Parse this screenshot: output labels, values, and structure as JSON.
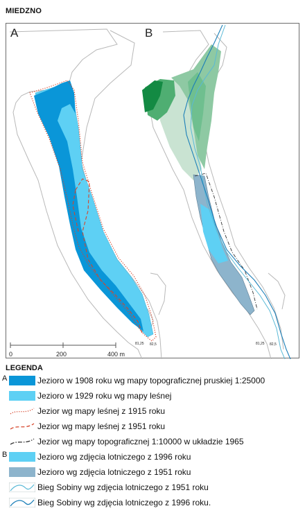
{
  "title": "MIEDZNO",
  "panels": {
    "a": "A",
    "b": "B"
  },
  "scale": {
    "tick0": "0",
    "tick1": "200",
    "tick2": "400 m"
  },
  "elevations": {
    "a_left": "81,25",
    "a_right": "82,5",
    "b_left": "81,25",
    "b_right": "82,5"
  },
  "legend": {
    "title": "LEGENDA",
    "group_a": "A",
    "group_b": "B",
    "items": [
      {
        "label": "Jezioro w 1908 roku wg mapy topograficznej pruskiej 1:25000",
        "color": "#0a96d8",
        "kind": "fill"
      },
      {
        "label": "Jezioro w 1929 roku wg mapy leśnej",
        "color": "#5ed0f4",
        "kind": "fill"
      },
      {
        "label": "Jezior wg mapy leśnej z 1915 roku",
        "color": "#d6452b",
        "kind": "dots"
      },
      {
        "label": "Jezior wg mapy leśnej z 1951 roku",
        "color": "#d6452b",
        "kind": "dash"
      },
      {
        "label": "Jezior wg mapy topograficznej 1:10000 w układzie 1965",
        "color": "#333333",
        "kind": "dashdot"
      },
      {
        "label": "Jezioro wg zdjęcia lotniczego z 1996 roku",
        "color": "#5ed0f4",
        "kind": "fill"
      },
      {
        "label": "Jezioro wg zdjęcia lotniczego z 1951 roku",
        "color": "#8db4cc",
        "kind": "fill"
      },
      {
        "label": "Bieg Sobiny wg zdjęcia lotniczego z 1951 roku",
        "color": "#5ab9d6",
        "kind": "river"
      },
      {
        "label": "Bieg Sobiny wg zdjęcia lotniczego z 1996 roku.",
        "color": "#1b7fb8",
        "kind": "river"
      }
    ]
  }
}
